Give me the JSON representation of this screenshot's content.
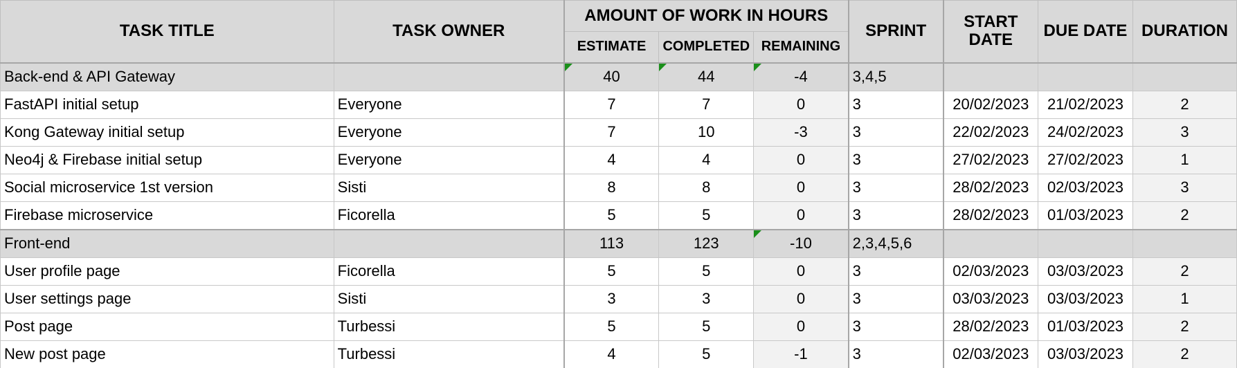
{
  "headers": {
    "task_title": "TASK TITLE",
    "task_owner": "TASK OWNER",
    "amount_of_work": "AMOUNT OF WORK IN HOURS",
    "estimate": "ESTIMATE",
    "completed": "COMPLETED",
    "remaining": "REMAINING",
    "sprint": "SPRINT",
    "start_date": "START DATE",
    "due_date": "DUE DATE",
    "duration": "DURATION"
  },
  "groups": [
    {
      "title": "Back-end & API Gateway",
      "owner": "",
      "estimate": "40",
      "completed": "44",
      "remaining": "-4",
      "sprint": "3,4,5",
      "start": "",
      "due": "",
      "duration": "",
      "tasks": [
        {
          "title": "FastAPI initial setup",
          "owner": "Everyone",
          "estimate": "7",
          "completed": "7",
          "remaining": "0",
          "sprint": "3",
          "start": "20/02/2023",
          "due": "21/02/2023",
          "duration": "2"
        },
        {
          "title": "Kong Gateway initial setup",
          "owner": "Everyone",
          "estimate": "7",
          "completed": "10",
          "remaining": "-3",
          "sprint": "3",
          "start": "22/02/2023",
          "due": "24/02/2023",
          "duration": "3"
        },
        {
          "title": "Neo4j & Firebase initial setup",
          "owner": "Everyone",
          "estimate": "4",
          "completed": "4",
          "remaining": "0",
          "sprint": "3",
          "start": "27/02/2023",
          "due": "27/02/2023",
          "duration": "1"
        },
        {
          "title": "Social microservice 1st version",
          "owner": "Sisti",
          "estimate": "8",
          "completed": "8",
          "remaining": "0",
          "sprint": "3",
          "start": "28/02/2023",
          "due": "02/03/2023",
          "duration": "3"
        },
        {
          "title": "Firebase microservice",
          "owner": "Ficorella",
          "estimate": "5",
          "completed": "5",
          "remaining": "0",
          "sprint": "3",
          "start": "28/02/2023",
          "due": "01/03/2023",
          "duration": "2"
        }
      ]
    },
    {
      "title": "Front-end",
      "owner": "",
      "estimate": "113",
      "completed": "123",
      "remaining": "-10",
      "sprint": "2,3,4,5,6",
      "start": "",
      "due": "",
      "duration": "",
      "tasks": [
        {
          "title": "User profile page",
          "owner": "Ficorella",
          "estimate": "5",
          "completed": "5",
          "remaining": "0",
          "sprint": "3",
          "start": "02/03/2023",
          "due": "03/03/2023",
          "duration": "2"
        },
        {
          "title": "User settings page",
          "owner": "Sisti",
          "estimate": "3",
          "completed": "3",
          "remaining": "0",
          "sprint": "3",
          "start": "03/03/2023",
          "due": "03/03/2023",
          "duration": "1"
        },
        {
          "title": "Post page",
          "owner": "Turbessi",
          "estimate": "5",
          "completed": "5",
          "remaining": "0",
          "sprint": "3",
          "start": "28/02/2023",
          "due": "01/03/2023",
          "duration": "2"
        },
        {
          "title": "New post page",
          "owner": "Turbessi",
          "estimate": "4",
          "completed": "5",
          "remaining": "-1",
          "sprint": "3",
          "start": "02/03/2023",
          "due": "03/03/2023",
          "duration": "2"
        }
      ]
    }
  ],
  "colors": {
    "header_bg": "#d9d9d9",
    "group_bg": "#d9d9d9",
    "computed_bg": "#f2f2f2",
    "comment_marker": "#1a8f1a",
    "grid": "#c8c8c8"
  }
}
